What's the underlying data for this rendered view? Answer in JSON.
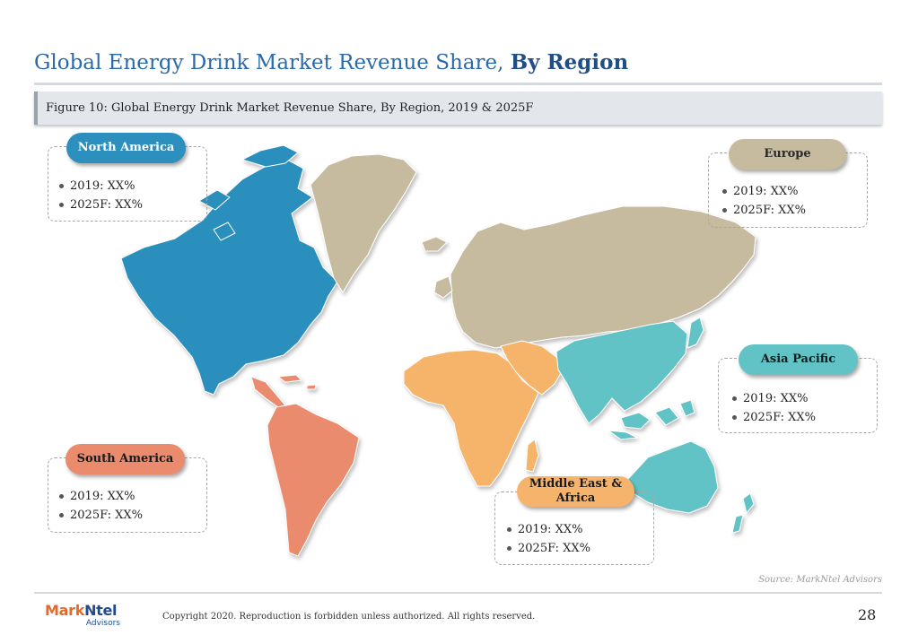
{
  "header": {
    "title_main": "Global Energy Drink Market Revenue Share, ",
    "title_bold": "By Region"
  },
  "figure": {
    "caption": "Figure 10: Global Energy Drink Market Revenue Share, By Region, 2019 & 2025F"
  },
  "regions": {
    "north_america": {
      "label": "North America",
      "color": "#2c8fbd",
      "items": [
        "2019: XX%",
        "2025F: XX%"
      ]
    },
    "europe": {
      "label": "Europe",
      "color": "#c7bb9f",
      "items": [
        "2019: XX%",
        "2025F: XX%"
      ]
    },
    "asia_pacific": {
      "label": "Asia Pacific",
      "color": "#62c3c7",
      "items": [
        "2019: XX%",
        "2025F: XX%"
      ]
    },
    "south_america": {
      "label": "South America",
      "color": "#e98b6c",
      "items": [
        "2019: XX%",
        "2025F: XX%"
      ]
    },
    "mea": {
      "label_line1": "Middle East &",
      "label_line2": "Africa",
      "color": "#f6b36b",
      "items": [
        "2019: XX%",
        "2025F: XX%"
      ]
    }
  },
  "source": "Source: MarkNtel Advisors",
  "footer": {
    "logo_mark": "Mark",
    "logo_ntel": "Ntel",
    "logo_sub": "Advisors",
    "copyright": "Copyright 2020. Reproduction is forbidden unless authorized. All rights reserved.",
    "page_number": "28"
  }
}
